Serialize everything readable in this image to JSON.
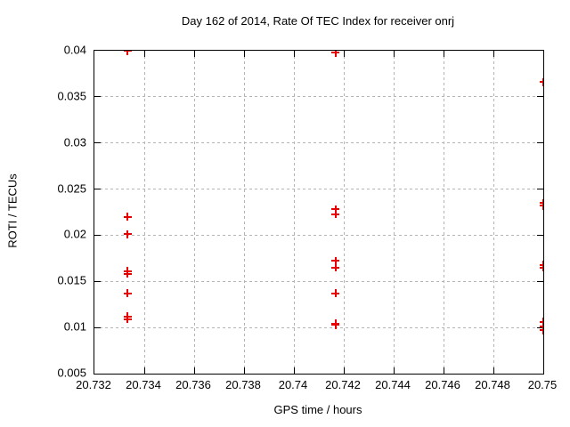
{
  "page": {
    "background": "#ffffff"
  },
  "chart_data": {
    "type": "scatter",
    "title": "Day 162 of 2014, Rate Of TEC Index for receiver onrj",
    "xlabel": "GPS time / hours",
    "ylabel": "ROTI / TECUs",
    "xlim": [
      20.732,
      20.75
    ],
    "ylim": [
      0.005,
      0.04
    ],
    "x_ticks": [
      20.732,
      20.734,
      20.736,
      20.738,
      20.74,
      20.742,
      20.744,
      20.746,
      20.748,
      20.75
    ],
    "x_tick_labels": [
      "20.732",
      "20.734",
      "20.736",
      "20.738",
      "20.74",
      "20.742",
      "20.744",
      "20.746",
      "20.748",
      "20.75"
    ],
    "y_ticks": [
      0.005,
      0.01,
      0.015,
      0.02,
      0.025,
      0.03,
      0.035,
      0.04
    ],
    "y_tick_labels": [
      "0.005",
      "0.01",
      "0.015",
      "0.02",
      "0.025",
      "0.03",
      "0.035",
      "0.04"
    ],
    "grid": true,
    "legend": "none",
    "marker": "plus",
    "colors": {
      "marker": "#e60000",
      "grid": "#b5b5b5",
      "axis": "#000000",
      "background": "#ffffff"
    },
    "series": [
      {
        "name": "ROTI",
        "points": [
          [
            20.733333,
            0.04
          ],
          [
            20.733333,
            0.022
          ],
          [
            20.733333,
            0.0201
          ],
          [
            20.733333,
            0.0161
          ],
          [
            20.733333,
            0.0158
          ],
          [
            20.733333,
            0.0137
          ],
          [
            20.733333,
            0.0112
          ],
          [
            20.733333,
            0.0109
          ],
          [
            20.741667,
            0.0398
          ],
          [
            20.741667,
            0.0228
          ],
          [
            20.741667,
            0.0223
          ],
          [
            20.741667,
            0.0172
          ],
          [
            20.741667,
            0.0165
          ],
          [
            20.741667,
            0.0137
          ],
          [
            20.741667,
            0.0104
          ],
          [
            20.741667,
            0.0103
          ],
          [
            20.75,
            0.0366
          ],
          [
            20.75,
            0.0235
          ],
          [
            20.75,
            0.0232
          ],
          [
            20.75,
            0.0168
          ],
          [
            20.75,
            0.0165
          ],
          [
            20.75,
            0.0106
          ],
          [
            20.75,
            0.0101
          ],
          [
            20.75,
            0.0097
          ]
        ]
      }
    ]
  }
}
